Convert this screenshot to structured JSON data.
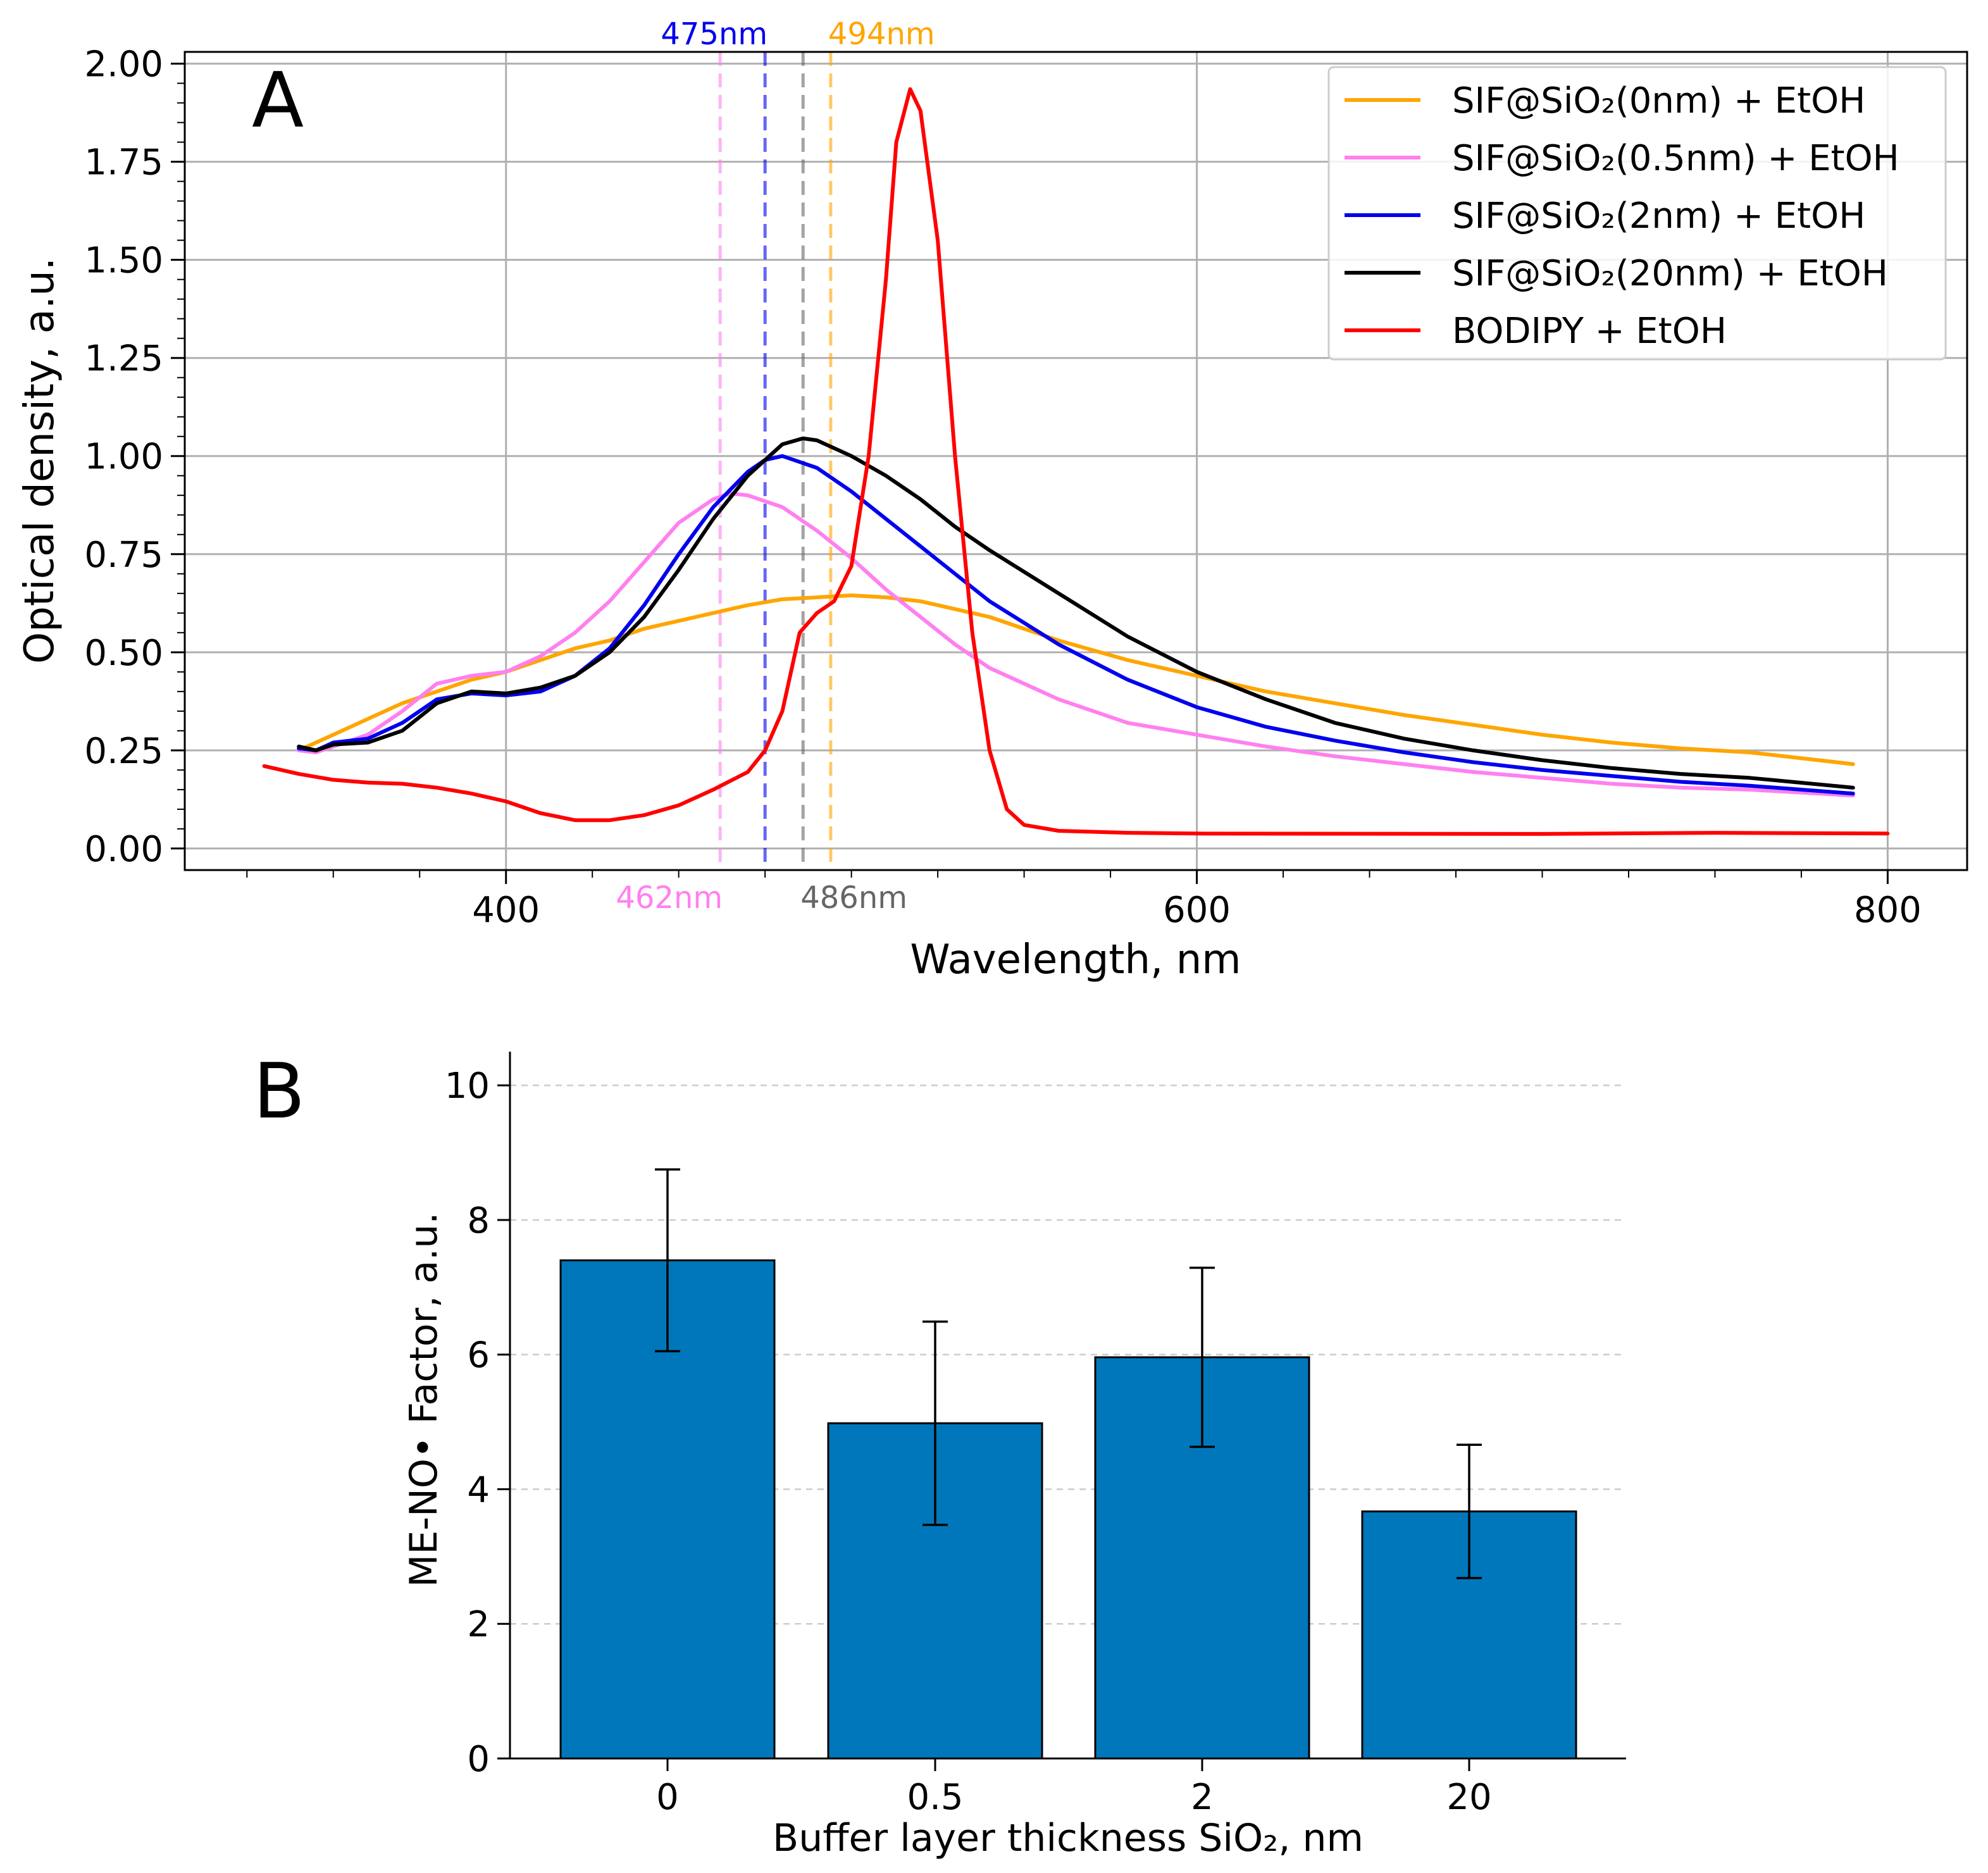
{
  "chart_data": [
    {
      "type": "line",
      "panel_label": "A",
      "title": "",
      "xlabel": "Wavelength, nm",
      "ylabel": "Optical density, a.u.",
      "xlim": [
        307,
        823
      ],
      "ylim": [
        -0.055,
        2.03
      ],
      "grid": true,
      "x_ticks": [
        400,
        600,
        800
      ],
      "x_tick_labels": [
        "400",
        "600",
        "800"
      ],
      "y_ticks": [
        0.0,
        0.25,
        0.5,
        0.75,
        1.0,
        1.25,
        1.5,
        1.75,
        2.0
      ],
      "y_tick_labels": [
        "0.00",
        "0.25",
        "0.50",
        "0.75",
        "1.00",
        "1.25",
        "1.50",
        "1.75",
        "2.00"
      ],
      "legend_position": "top-right",
      "series": [
        {
          "name": "SIF@SiO₂(0nm) + EtOH",
          "color": "#ffa500",
          "x": [
            340,
            350,
            360,
            370,
            380,
            390,
            400,
            410,
            420,
            430,
            440,
            450,
            460,
            470,
            480,
            490,
            500,
            510,
            520,
            530,
            540,
            550,
            560,
            580,
            600,
            620,
            640,
            660,
            680,
            700,
            720,
            740,
            760,
            790
          ],
          "y": [
            0.25,
            0.29,
            0.33,
            0.37,
            0.4,
            0.43,
            0.45,
            0.48,
            0.51,
            0.53,
            0.56,
            0.58,
            0.6,
            0.62,
            0.635,
            0.64,
            0.645,
            0.64,
            0.63,
            0.61,
            0.59,
            0.56,
            0.53,
            0.48,
            0.44,
            0.4,
            0.37,
            0.34,
            0.315,
            0.29,
            0.27,
            0.255,
            0.245,
            0.215
          ]
        },
        {
          "name": "SIF@SiO₂(0.5nm) + EtOH",
          "color": "#ff80ef",
          "x": [
            340,
            345,
            350,
            360,
            370,
            380,
            390,
            400,
            410,
            420,
            430,
            440,
            450,
            460,
            465,
            470,
            480,
            490,
            500,
            510,
            520,
            530,
            540,
            560,
            580,
            600,
            620,
            640,
            660,
            680,
            700,
            720,
            740,
            760,
            790
          ],
          "y": [
            0.25,
            0.245,
            0.26,
            0.29,
            0.35,
            0.42,
            0.44,
            0.45,
            0.49,
            0.55,
            0.63,
            0.73,
            0.83,
            0.89,
            0.905,
            0.9,
            0.87,
            0.81,
            0.74,
            0.66,
            0.59,
            0.52,
            0.46,
            0.38,
            0.32,
            0.29,
            0.26,
            0.235,
            0.215,
            0.195,
            0.18,
            0.165,
            0.155,
            0.15,
            0.135
          ]
        },
        {
          "name": "SIF@SiO₂(2nm) + EtOH",
          "color": "#0000ee",
          "x": [
            340,
            345,
            350,
            360,
            370,
            380,
            390,
            400,
            410,
            420,
            430,
            440,
            450,
            460,
            470,
            475,
            480,
            490,
            500,
            510,
            520,
            530,
            540,
            560,
            580,
            600,
            620,
            640,
            660,
            680,
            700,
            720,
            740,
            760,
            790
          ],
          "y": [
            0.255,
            0.25,
            0.27,
            0.28,
            0.32,
            0.38,
            0.395,
            0.39,
            0.4,
            0.44,
            0.51,
            0.62,
            0.75,
            0.87,
            0.96,
            0.99,
            1.0,
            0.97,
            0.91,
            0.84,
            0.77,
            0.7,
            0.63,
            0.52,
            0.43,
            0.36,
            0.31,
            0.275,
            0.245,
            0.22,
            0.2,
            0.185,
            0.17,
            0.16,
            0.14
          ]
        },
        {
          "name": "SIF@SiO₂(20nm) + EtOH",
          "color": "#000000",
          "x": [
            340,
            345,
            350,
            360,
            370,
            380,
            390,
            400,
            410,
            420,
            430,
            440,
            450,
            460,
            470,
            480,
            486,
            490,
            500,
            510,
            520,
            530,
            540,
            560,
            580,
            600,
            620,
            640,
            660,
            680,
            700,
            720,
            740,
            760,
            790
          ],
          "y": [
            0.26,
            0.25,
            0.265,
            0.27,
            0.3,
            0.37,
            0.4,
            0.395,
            0.41,
            0.44,
            0.5,
            0.59,
            0.71,
            0.84,
            0.95,
            1.03,
            1.045,
            1.04,
            1.0,
            0.95,
            0.89,
            0.82,
            0.76,
            0.65,
            0.54,
            0.45,
            0.38,
            0.32,
            0.28,
            0.25,
            0.225,
            0.205,
            0.19,
            0.18,
            0.155
          ]
        },
        {
          "name": "BODIPY + EtOH",
          "color": "#ff0000",
          "x": [
            330,
            340,
            350,
            360,
            370,
            380,
            390,
            400,
            410,
            420,
            430,
            440,
            450,
            460,
            470,
            475,
            480,
            485,
            490,
            495,
            500,
            505,
            510,
            513,
            517,
            520,
            525,
            530,
            535,
            540,
            545,
            550,
            560,
            580,
            600,
            700,
            750,
            800
          ],
          "y": [
            0.21,
            0.19,
            0.175,
            0.168,
            0.165,
            0.155,
            0.14,
            0.12,
            0.09,
            0.072,
            0.072,
            0.085,
            0.11,
            0.15,
            0.195,
            0.25,
            0.35,
            0.55,
            0.6,
            0.63,
            0.72,
            1.0,
            1.45,
            1.8,
            1.935,
            1.88,
            1.55,
            1.0,
            0.55,
            0.25,
            0.1,
            0.06,
            0.045,
            0.04,
            0.038,
            0.037,
            0.04,
            0.038
          ]
        }
      ],
      "vlines": [
        {
          "x": 462,
          "label": "462nm",
          "color": "#ff80ef",
          "label_position": "bottom"
        },
        {
          "x": 475,
          "label": "475nm",
          "color": "#0000ee",
          "label_position": "top"
        },
        {
          "x": 486,
          "label": "486nm",
          "color": "#666666",
          "label_position": "bottom"
        },
        {
          "x": 494,
          "label": "494nm",
          "color": "#ffa500",
          "label_position": "top"
        }
      ]
    },
    {
      "type": "bar",
      "panel_label": "B",
      "title": "",
      "xlabel": "Buffer layer thickness SiO₂, nm",
      "ylabel": "ME-NO• Factor, a.u.",
      "categories": [
        "0",
        "0.5",
        "2",
        "20"
      ],
      "values": [
        7.4,
        4.98,
        5.96,
        3.67
      ],
      "errors": [
        1.35,
        1.51,
        1.33,
        0.99
      ],
      "ylim": [
        0,
        10.5
      ],
      "y_ticks": [
        0,
        2,
        4,
        6,
        8,
        10
      ],
      "y_tick_labels": [
        "0",
        "2",
        "4",
        "6",
        "8",
        "10"
      ],
      "bar_color": "#0077bb",
      "grid": "y-dashed"
    }
  ]
}
